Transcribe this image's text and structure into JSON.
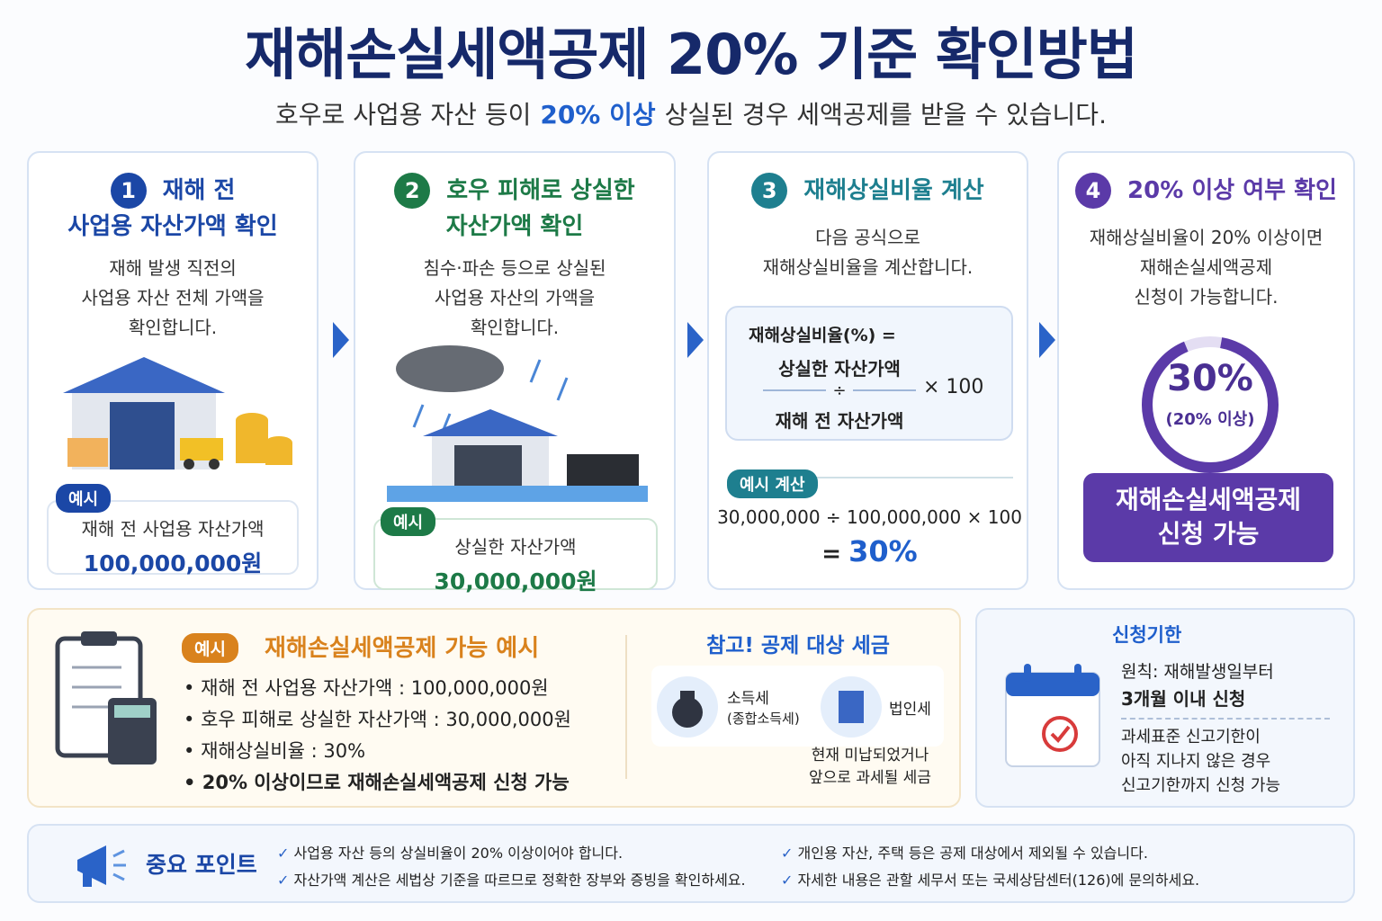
{
  "header": {
    "title": "재해손실세액공제 20% 기준 확인방법",
    "subtitle": [
      "호우로 사업용 자산 등이",
      "20% 이상",
      "상실된 경우 세액공제를 받을 수 있습니다."
    ]
  },
  "steps": [
    {
      "number": "1",
      "title": [
        "재해 전",
        "사업용 자산가액 확인"
      ],
      "desc": [
        "재해 발생 직전의",
        "사업용 자산 전체 가액을",
        "확인합니다."
      ],
      "example_label": "예시",
      "example_text": "재해 전 사업용 자산가액",
      "example_value": "100,000,000원"
    },
    {
      "number": "2",
      "title": [
        "호우 피해로 상실한",
        "자산가액 확인"
      ],
      "desc": [
        "침수·파손 등으로 상실된",
        "사업용 자산의 가액을",
        "확인합니다."
      ],
      "example_label": "예시",
      "example_text": "상실한 자산가액",
      "example_value": "30,000,000원"
    },
    {
      "number": "3",
      "title": [
        "재해상실비율 계산"
      ],
      "desc": [
        "다음 공식으로",
        "재해상실비율을 계산합니다."
      ],
      "formula": {
        "label": "재해상실비율(%) =",
        "numerator": "상실한 자산가액",
        "operator": "÷",
        "denominator": "재해 전 자산가액",
        "multiplier": "× 100"
      },
      "example_label": "예시 계산",
      "calculation": "30,000,000 ÷ 100,000,000 × 100",
      "result_eq": "=",
      "result": "30%"
    },
    {
      "number": "4",
      "title": [
        "20% 이상 여부 확인"
      ],
      "desc": [
        "재해상실비율이 20% 이상이면",
        "재해손실세액공제",
        "신청이 가능합니다."
      ],
      "gauge_value": "30%",
      "gauge_note": "(20% 이상)",
      "badge": [
        "재해손실세액공제",
        "신청 가능"
      ]
    }
  ],
  "example_box": {
    "badge": "예시",
    "title": "재해손실세액공제 가능 예시",
    "bullets": [
      "재해 전 사업용 자산가액 : 100,000,000원",
      "호우 피해로 상실한 자산가액 : 30,000,000원",
      "재해상실비율 : 30%",
      "20% 이상이므로 재해손실세액공제 신청 가능"
    ]
  },
  "reference": {
    "title": "참고! 공제 대상 세금",
    "taxes": [
      {
        "name": "소득세",
        "note": "(종합소득세)"
      },
      {
        "name": "법인세"
      }
    ],
    "note": [
      "현재 미납되었거나",
      "앞으로 과세될 세금"
    ]
  },
  "deadline": {
    "title": "신청기한",
    "rule": [
      "원칙: 재해발생일부터",
      "3개월 이내 신청"
    ],
    "note": [
      "과세표준 신고기한이",
      "아직 지나지 않은 경우",
      "신고기한까지 신청 가능"
    ]
  },
  "points": {
    "title": "중요 포인트",
    "items": [
      "사업용 자산 등의 상실비율이 20% 이상이어야 합니다.",
      "자산가액 계산은 세법상 기준을 따르므로 정확한 장부와 증빙을 확인하세요.",
      "개인용 자산, 주택 등은 공제 대상에서 제외될 수 있습니다.",
      "자세한 내용은 관할 세무서 또는 국세상담센터(126)에 문의하세요."
    ]
  }
}
